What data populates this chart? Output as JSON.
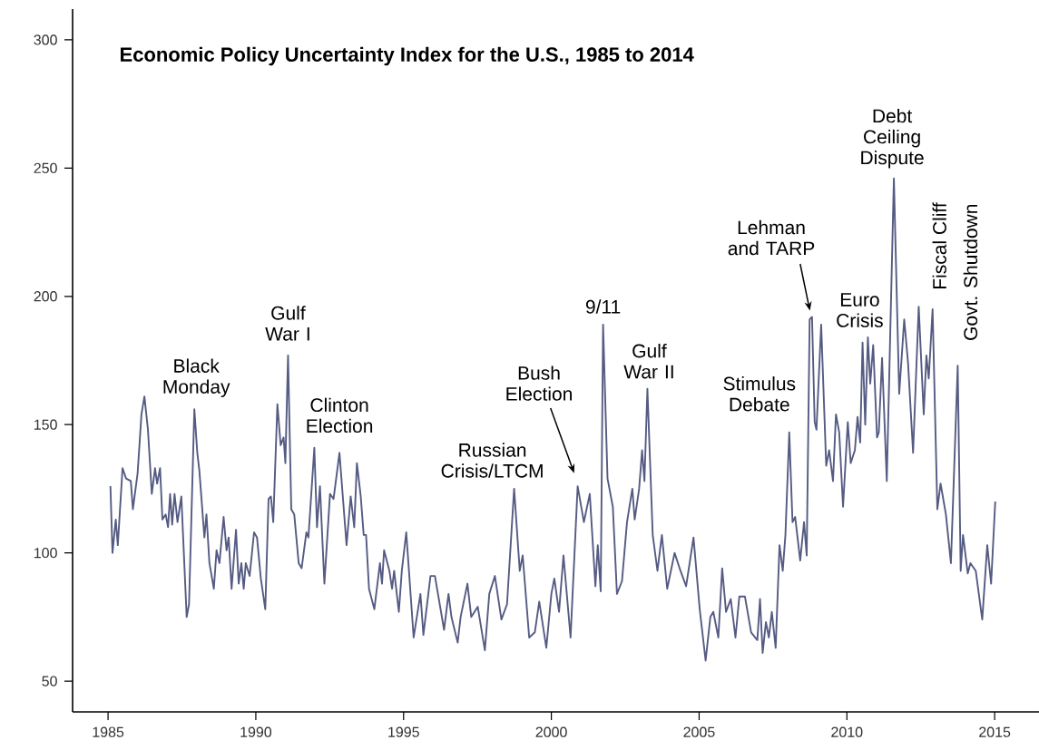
{
  "chart_data": {
    "type": "line",
    "title": "Economic Policy Uncertainty Index for the U.S., 1985 to 2014",
    "x": [
      1985.08,
      1985.15,
      1985.26,
      1985.33,
      1985.49,
      1985.61,
      1985.77,
      1985.84,
      1986.0,
      1986.13,
      1986.23,
      1986.35,
      1986.48,
      1986.59,
      1986.66,
      1986.76,
      1986.84,
      1986.95,
      1987.03,
      1987.1,
      1987.17,
      1987.25,
      1987.35,
      1987.48,
      1987.66,
      1987.74,
      1987.92,
      1988.02,
      1988.09,
      1988.26,
      1988.33,
      1988.43,
      1988.58,
      1988.67,
      1988.77,
      1988.91,
      1989.01,
      1989.08,
      1989.18,
      1989.33,
      1989.42,
      1989.51,
      1989.59,
      1989.66,
      1989.79,
      1989.94,
      1990.04,
      1990.17,
      1990.32,
      1990.43,
      1990.51,
      1990.59,
      1990.73,
      1990.84,
      1990.94,
      1991.0,
      1991.09,
      1991.2,
      1991.3,
      1991.45,
      1991.55,
      1991.71,
      1991.78,
      1991.98,
      1992.07,
      1992.17,
      1992.32,
      1992.51,
      1992.63,
      1992.83,
      1993.07,
      1993.21,
      1993.33,
      1993.42,
      1993.55,
      1993.65,
      1993.73,
      1993.83,
      1994.01,
      1994.2,
      1994.27,
      1994.34,
      1994.52,
      1994.61,
      1994.68,
      1994.84,
      1994.94,
      1995.09,
      1995.34,
      1995.57,
      1995.67,
      1995.91,
      1996.06,
      1996.37,
      1996.52,
      1996.62,
      1996.83,
      1996.93,
      1997.16,
      1997.29,
      1997.51,
      1997.75,
      1997.9,
      1998.09,
      1998.31,
      1998.5,
      1998.74,
      1998.93,
      1999.03,
      1999.25,
      1999.44,
      1999.59,
      1999.83,
      2000.0,
      2000.1,
      2000.26,
      2000.41,
      2000.65,
      2000.89,
      2001.1,
      2001.3,
      2001.49,
      2001.57,
      2001.67,
      2001.75,
      2001.9,
      2002.08,
      2002.22,
      2002.39,
      2002.56,
      2002.74,
      2002.82,
      2002.97,
      2003.07,
      2003.15,
      2003.25,
      2003.43,
      2003.59,
      2003.74,
      2003.92,
      2004.17,
      2004.37,
      2004.56,
      2004.81,
      2005.02,
      2005.22,
      2005.38,
      2005.48,
      2005.65,
      2005.78,
      2005.91,
      2006.07,
      2006.23,
      2006.36,
      2006.55,
      2006.76,
      2006.97,
      2007.06,
      2007.15,
      2007.26,
      2007.36,
      2007.46,
      2007.59,
      2007.72,
      2007.83,
      2007.92,
      2008.05,
      2008.16,
      2008.25,
      2008.42,
      2008.55,
      2008.64,
      2008.74,
      2008.82,
      2008.91,
      2008.97,
      2009.13,
      2009.3,
      2009.4,
      2009.53,
      2009.63,
      2009.74,
      2009.87,
      2010.03,
      2010.13,
      2010.27,
      2010.36,
      2010.45,
      2010.53,
      2010.62,
      2010.71,
      2010.79,
      2010.89,
      2011.02,
      2011.08,
      2011.19,
      2011.35,
      2011.59,
      2011.77,
      2011.94,
      2012.07,
      2012.24,
      2012.43,
      2012.6,
      2012.69,
      2012.77,
      2012.9,
      2013.06,
      2013.17,
      2013.35,
      2013.52,
      2013.75,
      2013.85,
      2013.93,
      2014.09,
      2014.18,
      2014.36,
      2014.58,
      2014.75,
      2014.88,
      2015.02
    ],
    "series": [
      {
        "color": "#555b82",
        "values": [
          126,
          100,
          113,
          103,
          133,
          129,
          128,
          117,
          131,
          154,
          161,
          148,
          123,
          133,
          127,
          133,
          113,
          115,
          110,
          123,
          111,
          123,
          112,
          122,
          75,
          80,
          156,
          139,
          132,
          106,
          115,
          96,
          86,
          101,
          96,
          114,
          101,
          106,
          86,
          109,
          88,
          96,
          86,
          96,
          91,
          108,
          106,
          90,
          78,
          121,
          122,
          112,
          158,
          142,
          145,
          135,
          177,
          117,
          115,
          96,
          94,
          108,
          106,
          141,
          110,
          126,
          88,
          123,
          121,
          139,
          103,
          122,
          110,
          135,
          122,
          107,
          107,
          86,
          78,
          96,
          88,
          101,
          93,
          86,
          93,
          77,
          93,
          108,
          67,
          84,
          68,
          91,
          91,
          70,
          84,
          75,
          65,
          75,
          88,
          75,
          79,
          62,
          84,
          91,
          74,
          80,
          125,
          93,
          99,
          67,
          69,
          81,
          63,
          84,
          90,
          77,
          99,
          67,
          126,
          112,
          123,
          87,
          103,
          85,
          189,
          129,
          118,
          84,
          89,
          112,
          125,
          113,
          125,
          140,
          128,
          164,
          107,
          93,
          107,
          86,
          100,
          93,
          87,
          106,
          78,
          58,
          75,
          77,
          67,
          94,
          77,
          82,
          67,
          83,
          83,
          69,
          66,
          82,
          61,
          73,
          67,
          77,
          63,
          103,
          93,
          107,
          147,
          112,
          114,
          97,
          112,
          99,
          191,
          192,
          151,
          148,
          189,
          134,
          140,
          128,
          154,
          147,
          118,
          151,
          135,
          140,
          153,
          143,
          182,
          150,
          184,
          166,
          181,
          145,
          147,
          176,
          128,
          246,
          162,
          191,
          174,
          139,
          196,
          154,
          177,
          168,
          195,
          117,
          127,
          115,
          96,
          173,
          93,
          107,
          92,
          96,
          93,
          74,
          103,
          88,
          120
        ]
      }
    ],
    "xlim": [
      1983.8,
      2016.5
    ],
    "ylim": [
      38,
      312
    ],
    "xticks": [
      1985,
      1990,
      1995,
      2000,
      2005,
      2010,
      2015
    ],
    "yticks": [
      50,
      100,
      150,
      200,
      250,
      300
    ],
    "annotations": [
      {
        "text": "Black Monday",
        "x": 1987.92,
        "y": 156
      },
      {
        "text": "Gulf War I",
        "x": 1991.09,
        "y": 177
      },
      {
        "text": "Clinton Election",
        "x": 1992.83,
        "y": 139
      },
      {
        "text": "Russian Crisis/LTCM",
        "x": 1998.74,
        "y": 125
      },
      "Bush Election",
      {
        "text": "9/11",
        "x": 2001.75,
        "y": 189
      },
      {
        "text": "Gulf War II",
        "x": 2003.25,
        "y": 164
      },
      {
        "text": "Stimulus Debate",
        "x": 2008.05,
        "y": 147
      },
      "Lehman and TARP",
      {
        "text": "Euro Crisis",
        "x": 2010.71,
        "y": 184
      },
      {
        "text": "Debt Ceiling Dispute",
        "x": 2011.59,
        "y": 246
      },
      {
        "text": "Fiscal Cliff",
        "x": 2012.9,
        "y": 195
      },
      {
        "text": "Govt. Shutdown",
        "x": 2013.75,
        "y": 173
      }
    ]
  }
}
